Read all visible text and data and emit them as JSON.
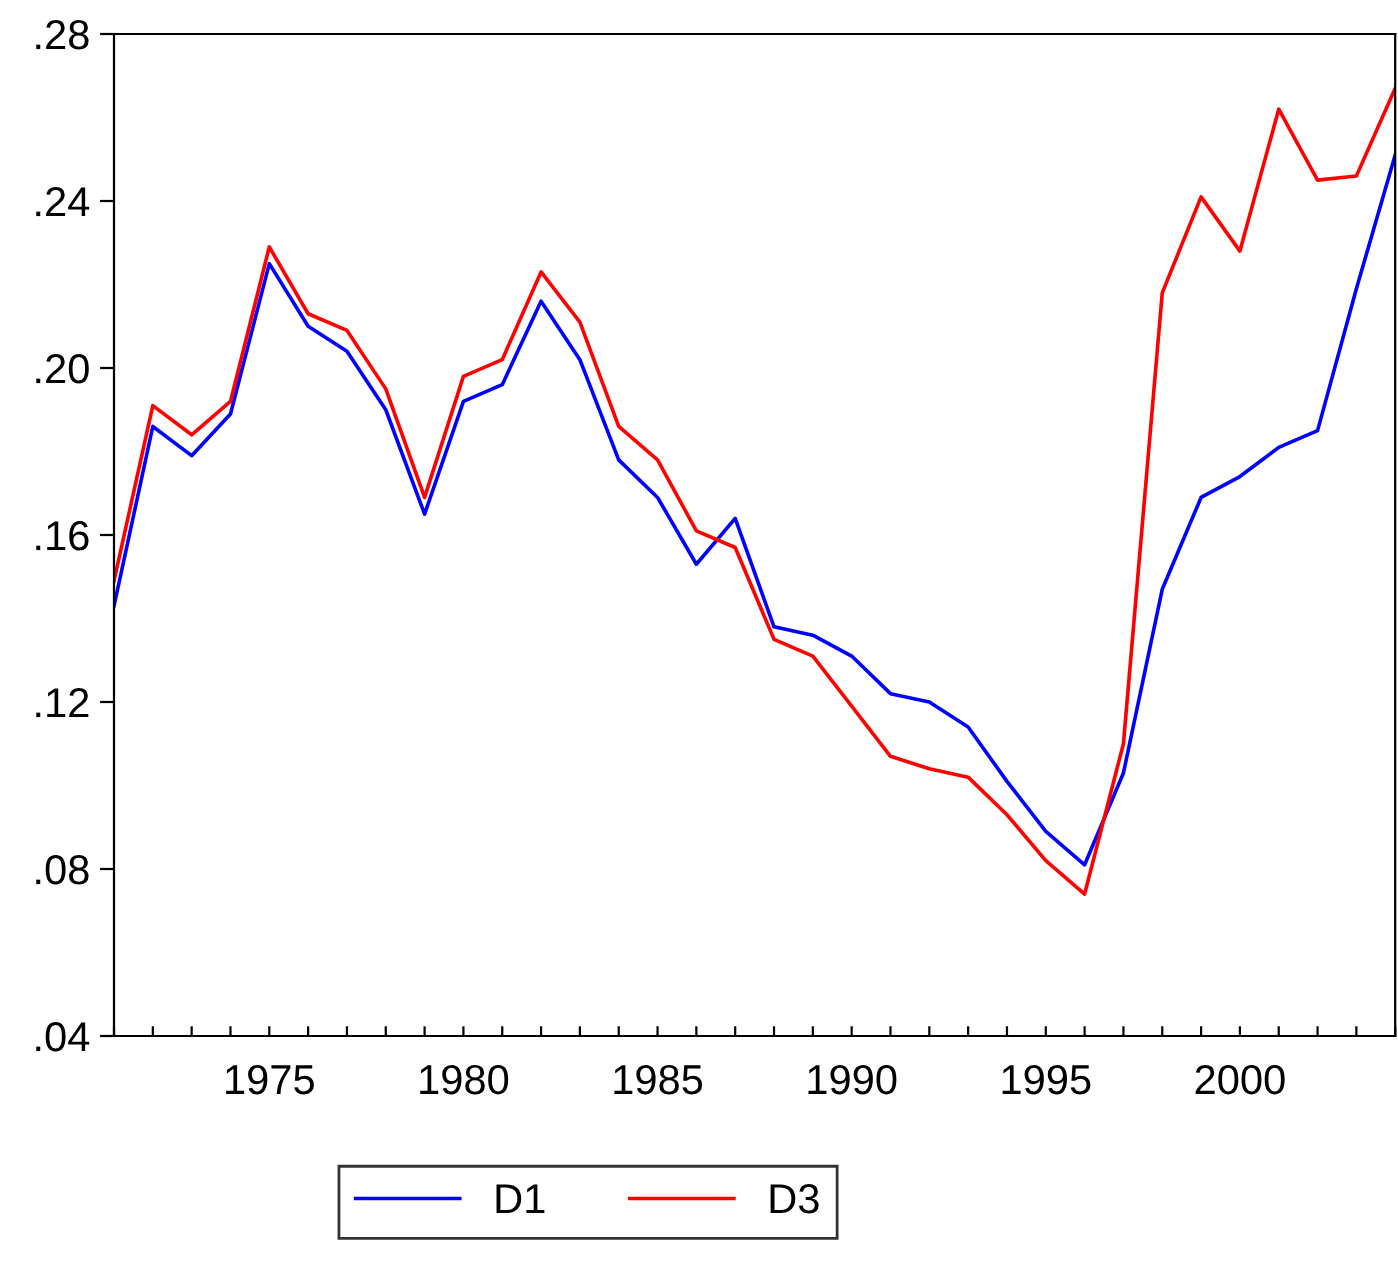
{
  "chart_data": {
    "type": "line",
    "x": [
      1971,
      1972,
      1973,
      1974,
      1975,
      1976,
      1977,
      1978,
      1979,
      1980,
      1981,
      1982,
      1983,
      1984,
      1985,
      1986,
      1987,
      1988,
      1989,
      1990,
      1991,
      1992,
      1993,
      1994,
      1995,
      1996,
      1997,
      1998,
      1999,
      2000,
      2001,
      2002,
      2003,
      2004
    ],
    "series": [
      {
        "name": "D1",
        "color": "#0000ff",
        "values": [
          0.143,
          0.186,
          0.179,
          0.189,
          0.225,
          0.21,
          0.204,
          0.19,
          0.165,
          0.192,
          0.196,
          0.216,
          0.202,
          0.178,
          0.169,
          0.153,
          0.164,
          0.138,
          0.136,
          0.131,
          0.122,
          0.12,
          0.114,
          0.101,
          0.089,
          0.081,
          0.103,
          0.147,
          0.169,
          0.174,
          0.181,
          0.185,
          0.219,
          0.251
        ]
      },
      {
        "name": "D3",
        "color": "#ff0000",
        "values": [
          0.149,
          0.191,
          0.184,
          0.192,
          0.229,
          0.213,
          0.209,
          0.195,
          0.169,
          0.198,
          0.202,
          0.223,
          0.211,
          0.186,
          0.178,
          0.161,
          0.157,
          0.135,
          0.131,
          0.119,
          0.107,
          0.104,
          0.102,
          0.093,
          0.082,
          0.074,
          0.11,
          0.218,
          0.241,
          0.228,
          0.262,
          0.245,
          0.246,
          0.267
        ]
      }
    ],
    "xlim": [
      1971,
      2004
    ],
    "xticks": [
      {
        "value": 1971,
        "label": null
      },
      {
        "value": 1972,
        "label": null
      },
      {
        "value": 1973,
        "label": null
      },
      {
        "value": 1974,
        "label": null
      },
      {
        "value": 1975,
        "label": "1975"
      },
      {
        "value": 1976,
        "label": null
      },
      {
        "value": 1977,
        "label": null
      },
      {
        "value": 1978,
        "label": null
      },
      {
        "value": 1979,
        "label": null
      },
      {
        "value": 1980,
        "label": "1980"
      },
      {
        "value": 1981,
        "label": null
      },
      {
        "value": 1982,
        "label": null
      },
      {
        "value": 1983,
        "label": null
      },
      {
        "value": 1984,
        "label": null
      },
      {
        "value": 1985,
        "label": "1985"
      },
      {
        "value": 1986,
        "label": null
      },
      {
        "value": 1987,
        "label": null
      },
      {
        "value": 1988,
        "label": null
      },
      {
        "value": 1989,
        "label": null
      },
      {
        "value": 1990,
        "label": "1990"
      },
      {
        "value": 1991,
        "label": null
      },
      {
        "value": 1992,
        "label": null
      },
      {
        "value": 1993,
        "label": null
      },
      {
        "value": 1994,
        "label": null
      },
      {
        "value": 1995,
        "label": "1995"
      },
      {
        "value": 1996,
        "label": null
      },
      {
        "value": 1997,
        "label": null
      },
      {
        "value": 1998,
        "label": null
      },
      {
        "value": 1999,
        "label": null
      },
      {
        "value": 2000,
        "label": "2000"
      },
      {
        "value": 2001,
        "label": null
      },
      {
        "value": 2002,
        "label": null
      },
      {
        "value": 2003,
        "label": null
      },
      {
        "value": 2004,
        "label": null
      }
    ],
    "ylim": [
      0.04,
      0.28
    ],
    "yticks": [
      {
        "value": 0.04,
        "label": ".04"
      },
      {
        "value": 0.08,
        "label": ".08"
      },
      {
        "value": 0.12,
        "label": ".12"
      },
      {
        "value": 0.16,
        "label": ".16"
      },
      {
        "value": 0.2,
        "label": ".20"
      },
      {
        "value": 0.24,
        "label": ".24"
      },
      {
        "value": 0.28,
        "label": ".28"
      }
    ],
    "grid": false,
    "legend": "bottom",
    "marker": "none",
    "line_style": "solid"
  }
}
